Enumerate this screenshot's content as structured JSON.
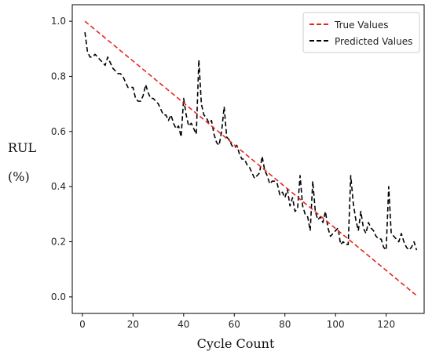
{
  "chart_data": {
    "type": "line",
    "xlabel": "Cycle Count",
    "ylabel_line1": "RUL",
    "ylabel_line2": "(%)",
    "xlim": [
      -4,
      135
    ],
    "ylim": [
      -0.06,
      1.06
    ],
    "xticks": [
      0,
      20,
      40,
      60,
      80,
      100,
      120
    ],
    "yticks": [
      0.0,
      0.2,
      0.4,
      0.6,
      0.8,
      1.0
    ],
    "ytick_labels": [
      "0.0",
      "0.2",
      "0.4",
      "0.6",
      "0.8",
      "1.0"
    ],
    "grid": false,
    "legend_position": "top-right",
    "series": [
      {
        "name": "True Values",
        "color": "#e8251f",
        "style": "dashed",
        "x": [
          1,
          132
        ],
        "y": [
          1.0,
          0.005
        ]
      },
      {
        "name": "Predicted Values",
        "color": "#000000",
        "style": "dashed",
        "x": [
          1,
          2,
          3,
          4,
          5,
          6,
          7,
          8,
          9,
          10,
          11,
          12,
          13,
          14,
          15,
          16,
          17,
          18,
          19,
          20,
          21,
          22,
          23,
          24,
          25,
          26,
          27,
          28,
          29,
          30,
          31,
          32,
          33,
          34,
          35,
          36,
          37,
          38,
          39,
          40,
          41,
          42,
          43,
          44,
          45,
          46,
          47,
          48,
          49,
          50,
          51,
          52,
          53,
          54,
          55,
          56,
          57,
          58,
          59,
          60,
          61,
          62,
          63,
          64,
          65,
          66,
          67,
          68,
          69,
          70,
          71,
          72,
          73,
          74,
          75,
          76,
          77,
          78,
          79,
          80,
          81,
          82,
          83,
          84,
          85,
          86,
          87,
          88,
          89,
          90,
          91,
          92,
          93,
          94,
          95,
          96,
          97,
          98,
          99,
          100,
          101,
          102,
          103,
          104,
          105,
          106,
          107,
          108,
          109,
          110,
          111,
          112,
          113,
          114,
          115,
          116,
          117,
          118,
          119,
          120,
          121,
          122,
          123,
          124,
          125,
          126,
          127,
          128,
          129,
          130,
          131,
          132
        ],
        "y": [
          0.96,
          0.89,
          0.87,
          0.87,
          0.88,
          0.87,
          0.86,
          0.85,
          0.84,
          0.87,
          0.85,
          0.83,
          0.82,
          0.81,
          0.81,
          0.8,
          0.78,
          0.76,
          0.76,
          0.76,
          0.72,
          0.71,
          0.71,
          0.73,
          0.77,
          0.74,
          0.72,
          0.72,
          0.71,
          0.7,
          0.68,
          0.66,
          0.66,
          0.64,
          0.66,
          0.63,
          0.61,
          0.62,
          0.58,
          0.72,
          0.66,
          0.62,
          0.63,
          0.61,
          0.59,
          0.86,
          0.7,
          0.66,
          0.65,
          0.63,
          0.64,
          0.59,
          0.56,
          0.55,
          0.6,
          0.69,
          0.58,
          0.57,
          0.55,
          0.54,
          0.55,
          0.52,
          0.5,
          0.5,
          0.48,
          0.47,
          0.45,
          0.43,
          0.44,
          0.45,
          0.51,
          0.46,
          0.44,
          0.41,
          0.42,
          0.42,
          0.41,
          0.37,
          0.38,
          0.36,
          0.39,
          0.33,
          0.36,
          0.31,
          0.32,
          0.44,
          0.33,
          0.3,
          0.29,
          0.24,
          0.42,
          0.31,
          0.28,
          0.29,
          0.27,
          0.31,
          0.25,
          0.22,
          0.23,
          0.24,
          0.25,
          0.19,
          0.2,
          0.19,
          0.19,
          0.44,
          0.34,
          0.28,
          0.24,
          0.31,
          0.25,
          0.23,
          0.27,
          0.25,
          0.24,
          0.22,
          0.21,
          0.21,
          0.18,
          0.17,
          0.4,
          0.23,
          0.22,
          0.21,
          0.2,
          0.23,
          0.2,
          0.18,
          0.17,
          0.18,
          0.2,
          0.17
        ]
      }
    ]
  }
}
